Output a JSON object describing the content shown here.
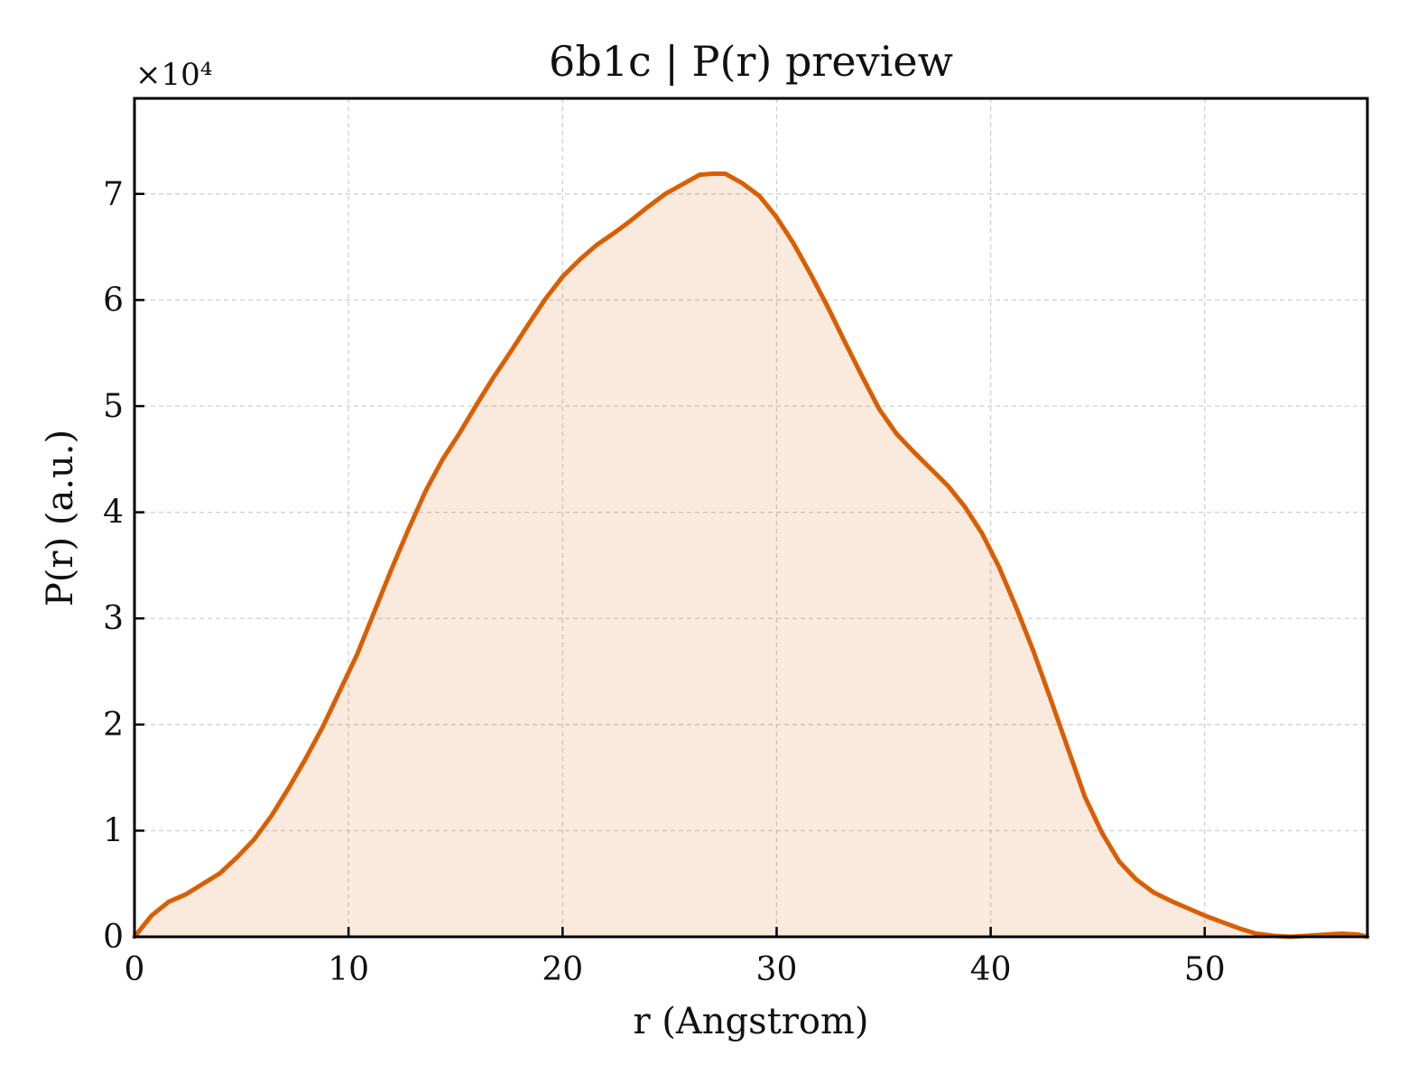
{
  "chart_data": {
    "type": "area",
    "title": "6b1c | P(r) preview",
    "xlabel": "r (Angstrom)",
    "ylabel": "P(r) (a.u.)",
    "y_offset_text": "×10⁴",
    "y_scale_factor": 10000,
    "xlim": [
      0,
      57.6
    ],
    "ylim": [
      0,
      79000
    ],
    "xticks": [
      0,
      10,
      20,
      30,
      40,
      50
    ],
    "yticks": [
      0,
      10000,
      20000,
      30000,
      40000,
      50000,
      60000,
      70000
    ],
    "xtick_labels": [
      "0",
      "10",
      "20",
      "30",
      "40",
      "50"
    ],
    "ytick_labels": [
      "0",
      "1",
      "2",
      "3",
      "4",
      "5",
      "6",
      "7"
    ],
    "grid": true,
    "line_color": "#d95f02",
    "fill_color": "#d95f02",
    "fill_opacity": 0.13,
    "series": [
      {
        "x": [
          0,
          0.8,
          1.6,
          2.4,
          3.2,
          4.0,
          4.8,
          5.6,
          6.4,
          7.2,
          8.0,
          8.8,
          9.6,
          10.4,
          11.2,
          12.0,
          12.8,
          13.6,
          14.4,
          15.2,
          16.0,
          16.8,
          17.6,
          18.4,
          19.2,
          20.0,
          20.8,
          21.6,
          22.4,
          23.2,
          24.0,
          24.8,
          25.6,
          26.4,
          27.0,
          27.6,
          28.4,
          29.2,
          30.0,
          30.8,
          31.6,
          32.4,
          33.2,
          34.0,
          34.8,
          35.6,
          36.4,
          37.2,
          38.0,
          38.8,
          39.6,
          40.4,
          41.2,
          42.0,
          42.8,
          43.6,
          44.4,
          45.2,
          46.0,
          46.8,
          47.6,
          48.4,
          49.2,
          50.0,
          50.8,
          51.6,
          52.4,
          53.2,
          54.0,
          54.8,
          55.6,
          56.4,
          57.2,
          57.6
        ],
        "y": [
          0,
          2000,
          3300,
          4000,
          5000,
          6000,
          7500,
          9200,
          11400,
          14000,
          16800,
          19800,
          23200,
          26600,
          30600,
          34600,
          38400,
          42000,
          45000,
          47500,
          50200,
          52800,
          55200,
          57700,
          60100,
          62200,
          63800,
          65200,
          66300,
          67500,
          68800,
          70000,
          70900,
          71800,
          71900,
          71900,
          71000,
          69800,
          67800,
          65300,
          62400,
          59300,
          56000,
          52800,
          49700,
          47400,
          45700,
          44100,
          42500,
          40500,
          38000,
          34800,
          31000,
          26900,
          22400,
          17800,
          13200,
          9800,
          7100,
          5400,
          4200,
          3400,
          2700,
          2000,
          1400,
          800,
          300,
          100,
          0,
          100,
          200,
          300,
          200,
          0
        ]
      }
    ]
  }
}
